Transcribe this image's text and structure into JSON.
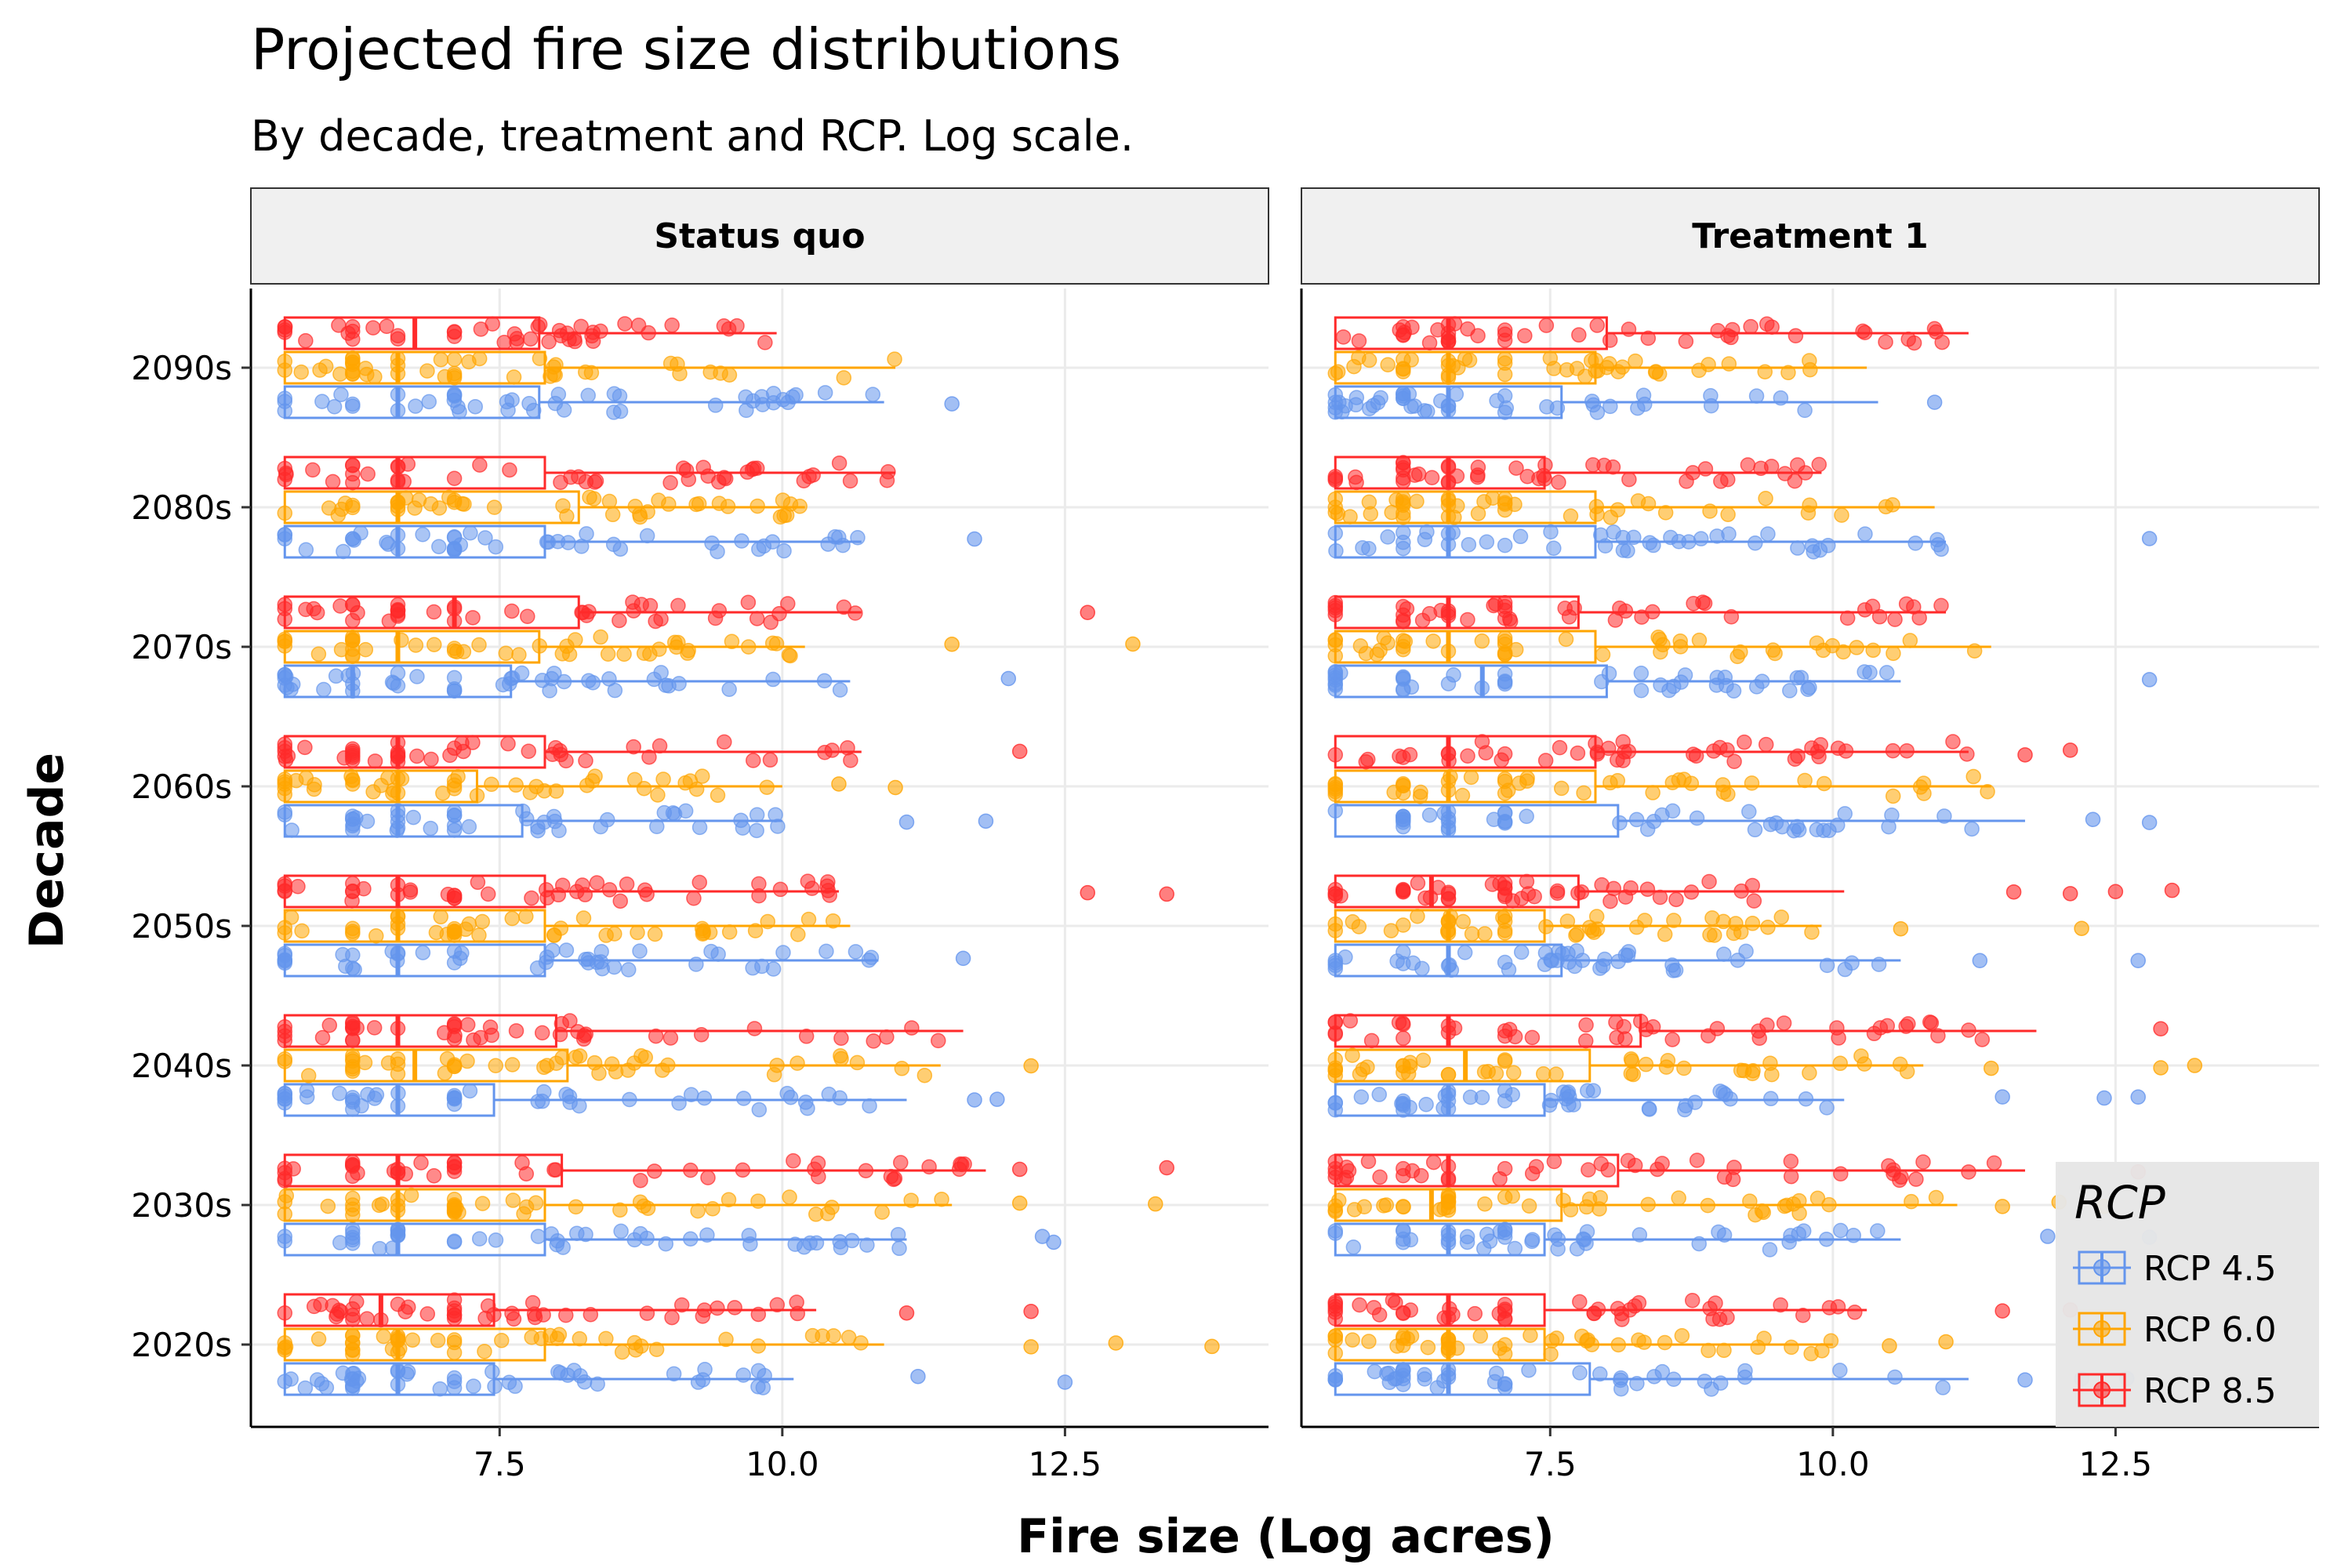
{
  "chart_data": {
    "type": "boxplot",
    "title": "Projected fire size distributions",
    "subtitle": "By decade, treatment and RCP. Log scale.",
    "xlabel": "Fire size (Log acres)",
    "ylabel": "Decade",
    "xlim": [
      5.3,
      14.3
    ],
    "x_ticks": [
      7.5,
      10.0,
      12.5
    ],
    "x_tick_labels": [
      "7.5",
      "10.0",
      "12.5"
    ],
    "categories": [
      "2020s",
      "2030s",
      "2040s",
      "2050s",
      "2060s",
      "2070s",
      "2080s",
      "2090s"
    ],
    "grid": true,
    "legend": {
      "title": "RCP",
      "position": "bottom-right",
      "entries": [
        {
          "label": "RCP 4.5",
          "color": "#6495ED"
        },
        {
          "label": "RCP 6.0",
          "color": "#FFA500"
        },
        {
          "label": "RCP 8.5",
          "color": "#FF2A2A"
        }
      ]
    },
    "series_colors": {
      "RCP 4.5": "#6495ED",
      "RCP 6.0": "#FFA500",
      "RCP 8.5": "#FF2A2A"
    },
    "panels": [
      {
        "name": "Status quo",
        "data": {
          "2020s": {
            "RCP 4.5": {
              "box": [
                5.6,
                5.6,
                6.6,
                7.45,
                10.1
              ],
              "outliers": [
                11.2,
                12.5
              ]
            },
            "RCP 6.0": {
              "box": [
                5.6,
                5.6,
                6.6,
                7.9,
                10.9
              ],
              "outliers": [
                12.2,
                12.95,
                13.8
              ]
            },
            "RCP 8.5": {
              "box": [
                5.6,
                5.6,
                6.45,
                7.45,
                10.3
              ],
              "outliers": [
                11.1,
                12.2
              ]
            }
          },
          "2030s": {
            "RCP 4.5": {
              "box": [
                5.6,
                5.6,
                6.6,
                7.9,
                11.1
              ],
              "outliers": [
                12.3,
                12.4
              ]
            },
            "RCP 6.0": {
              "box": [
                5.6,
                5.6,
                6.6,
                7.9,
                11.5
              ],
              "outliers": [
                12.1,
                13.3
              ]
            },
            "RCP 8.5": {
              "box": [
                5.6,
                5.6,
                6.6,
                8.05,
                11.8
              ],
              "outliers": [
                12.1,
                13.4
              ]
            }
          },
          "2040s": {
            "RCP 4.5": {
              "box": [
                5.6,
                5.6,
                6.6,
                7.45,
                11.1
              ],
              "outliers": [
                11.7,
                11.9
              ]
            },
            "RCP 6.0": {
              "box": [
                5.6,
                5.6,
                6.75,
                8.1,
                11.4
              ],
              "outliers": [
                12.2
              ]
            },
            "RCP 8.5": {
              "box": [
                5.6,
                5.6,
                6.6,
                8.0,
                11.6
              ],
              "outliers": []
            }
          },
          "2050s": {
            "RCP 4.5": {
              "box": [
                5.6,
                5.6,
                6.6,
                7.9,
                10.85
              ],
              "outliers": [
                11.6
              ]
            },
            "RCP 6.0": {
              "box": [
                5.6,
                5.6,
                6.6,
                7.9,
                10.6
              ],
              "outliers": []
            },
            "RCP 8.5": {
              "box": [
                5.6,
                5.6,
                6.6,
                7.9,
                10.5
              ],
              "outliers": [
                12.7,
                13.4
              ]
            }
          },
          "2060s": {
            "RCP 4.5": {
              "box": [
                5.6,
                5.6,
                6.6,
                7.7,
                10.0
              ],
              "outliers": [
                11.1,
                11.8
              ]
            },
            "RCP 6.0": {
              "box": [
                5.6,
                5.6,
                6.6,
                7.3,
                10.0
              ],
              "outliers": [
                10.5,
                11.0
              ]
            },
            "RCP 8.5": {
              "box": [
                5.6,
                5.6,
                6.6,
                7.9,
                10.7
              ],
              "outliers": [
                12.1
              ]
            }
          },
          "2070s": {
            "RCP 4.5": {
              "box": [
                5.6,
                5.6,
                6.2,
                7.6,
                10.6
              ],
              "outliers": [
                12.0
              ]
            },
            "RCP 6.0": {
              "box": [
                5.6,
                5.6,
                6.6,
                7.85,
                10.2
              ],
              "outliers": [
                11.5,
                13.1
              ]
            },
            "RCP 8.5": {
              "box": [
                5.6,
                5.6,
                7.1,
                8.2,
                10.7
              ],
              "outliers": [
                12.7
              ]
            }
          },
          "2080s": {
            "RCP 4.5": {
              "box": [
                5.6,
                5.6,
                6.6,
                7.9,
                10.7
              ],
              "outliers": [
                11.7
              ]
            },
            "RCP 6.0": {
              "box": [
                5.6,
                5.6,
                6.6,
                8.2,
                10.2
              ],
              "outliers": []
            },
            "RCP 8.5": {
              "box": [
                5.6,
                5.6,
                6.6,
                7.9,
                11.0
              ],
              "outliers": []
            }
          },
          "2090s": {
            "RCP 4.5": {
              "box": [
                5.6,
                5.6,
                6.6,
                7.85,
                10.9
              ],
              "outliers": [
                11.5
              ]
            },
            "RCP 6.0": {
              "box": [
                5.6,
                5.6,
                6.6,
                7.9,
                11.0
              ],
              "outliers": []
            },
            "RCP 8.5": {
              "box": [
                5.6,
                5.6,
                6.75,
                7.85,
                9.95
              ],
              "outliers": []
            }
          }
        }
      },
      {
        "name": "Treatment 1",
        "data": {
          "2020s": {
            "RCP 4.5": {
              "box": [
                5.6,
                5.6,
                6.6,
                7.85,
                11.2
              ],
              "outliers": [
                11.7,
                12.2,
                12.6
              ]
            },
            "RCP 6.0": {
              "box": [
                5.6,
                5.6,
                6.6,
                7.45,
                10.0
              ],
              "outliers": [
                10.5,
                11.0
              ]
            },
            "RCP 8.5": {
              "box": [
                5.6,
                5.6,
                6.6,
                7.45,
                10.3
              ],
              "outliers": [
                11.5,
                12.1
              ]
            }
          },
          "2030s": {
            "RCP 4.5": {
              "box": [
                5.6,
                5.6,
                6.6,
                7.45,
                10.6
              ],
              "outliers": [
                11.9,
                12.8
              ]
            },
            "RCP 6.0": {
              "box": [
                5.6,
                5.6,
                6.45,
                7.6,
                11.1
              ],
              "outliers": [
                11.5,
                12.0,
                12.4
              ]
            },
            "RCP 8.5": {
              "box": [
                5.6,
                5.6,
                6.6,
                8.1,
                11.7
              ],
              "outliers": [
                12.7
              ]
            }
          },
          "2040s": {
            "RCP 4.5": {
              "box": [
                5.6,
                5.6,
                6.6,
                7.45,
                10.1
              ],
              "outliers": [
                11.5,
                12.4,
                12.7
              ]
            },
            "RCP 6.0": {
              "box": [
                5.6,
                5.6,
                6.75,
                7.85,
                10.8
              ],
              "outliers": [
                11.4,
                12.9,
                13.2
              ]
            },
            "RCP 8.5": {
              "box": [
                5.6,
                5.6,
                6.6,
                8.3,
                11.8
              ],
              "outliers": [
                12.9
              ]
            }
          },
          "2050s": {
            "RCP 4.5": {
              "box": [
                5.6,
                5.6,
                6.6,
                7.6,
                10.6
              ],
              "outliers": [
                11.3,
                12.7
              ]
            },
            "RCP 6.0": {
              "box": [
                5.6,
                5.6,
                6.6,
                7.45,
                9.9
              ],
              "outliers": [
                10.6,
                12.2
              ]
            },
            "RCP 8.5": {
              "box": [
                5.6,
                5.6,
                6.45,
                7.75,
                10.1
              ],
              "outliers": [
                11.6,
                12.1,
                12.5,
                13.0
              ]
            }
          },
          "2060s": {
            "RCP 4.5": {
              "box": [
                5.6,
                5.6,
                6.6,
                8.1,
                11.7
              ],
              "outliers": [
                12.3,
                12.8
              ]
            },
            "RCP 6.0": {
              "box": [
                5.6,
                5.6,
                6.6,
                7.9,
                11.4
              ],
              "outliers": []
            },
            "RCP 8.5": {
              "box": [
                5.6,
                5.6,
                6.6,
                7.9,
                11.2
              ],
              "outliers": [
                11.7,
                12.1
              ]
            }
          },
          "2070s": {
            "RCP 4.5": {
              "box": [
                5.6,
                5.6,
                6.9,
                8.0,
                10.6
              ],
              "outliers": [
                12.8
              ]
            },
            "RCP 6.0": {
              "box": [
                5.6,
                5.6,
                6.6,
                7.9,
                11.4
              ],
              "outliers": []
            },
            "RCP 8.5": {
              "box": [
                5.6,
                5.6,
                6.6,
                7.75,
                11.0
              ],
              "outliers": []
            }
          },
          "2080s": {
            "RCP 4.5": {
              "box": [
                5.6,
                5.6,
                6.6,
                7.9,
                11.0
              ],
              "outliers": [
                12.8
              ]
            },
            "RCP 6.0": {
              "box": [
                5.6,
                5.6,
                6.6,
                7.9,
                10.9
              ],
              "outliers": []
            },
            "RCP 8.5": {
              "box": [
                5.6,
                5.6,
                6.6,
                7.45,
                9.9
              ],
              "outliers": []
            }
          },
          "2090s": {
            "RCP 4.5": {
              "box": [
                5.6,
                5.6,
                6.6,
                7.6,
                10.4
              ],
              "outliers": [
                10.9
              ]
            },
            "RCP 6.0": {
              "box": [
                5.6,
                5.6,
                6.6,
                7.9,
                10.3
              ],
              "outliers": []
            },
            "RCP 8.5": {
              "box": [
                5.6,
                5.6,
                6.6,
                8.0,
                11.2
              ],
              "outliers": []
            }
          }
        }
      }
    ]
  }
}
